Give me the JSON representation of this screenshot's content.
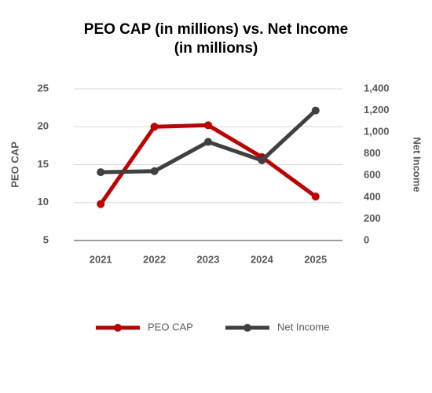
{
  "chart_data": {
    "type": "line",
    "title": "PEO CAP (in millions) vs. Net Income (in millions)",
    "categories": [
      "2021",
      "2022",
      "2023",
      "2024",
      "2025"
    ],
    "series": [
      {
        "name": "PEO CAP",
        "color": "#c00000",
        "values": [
          9.8,
          20.0,
          20.2,
          16.0,
          10.8
        ]
      },
      {
        "name": "Net Income",
        "color": "#404040",
        "axis": "y2",
        "values": [
          630,
          640,
          910,
          740,
          1200
        ]
      }
    ],
    "ylabel": "PEO CAP",
    "y2label": "Net Income",
    "ylim": [
      5,
      25
    ],
    "yticks": [
      5,
      10,
      15,
      20,
      25
    ],
    "y2lim": [
      0,
      1400
    ],
    "y2ticks": [
      0,
      200,
      400,
      600,
      800,
      {
        "value": 1000,
        "label": "1,000"
      },
      {
        "value": 1200,
        "label": "1,200"
      },
      {
        "value": 1400,
        "label": "1,400"
      }
    ],
    "grid": true,
    "legend": "bottom"
  }
}
